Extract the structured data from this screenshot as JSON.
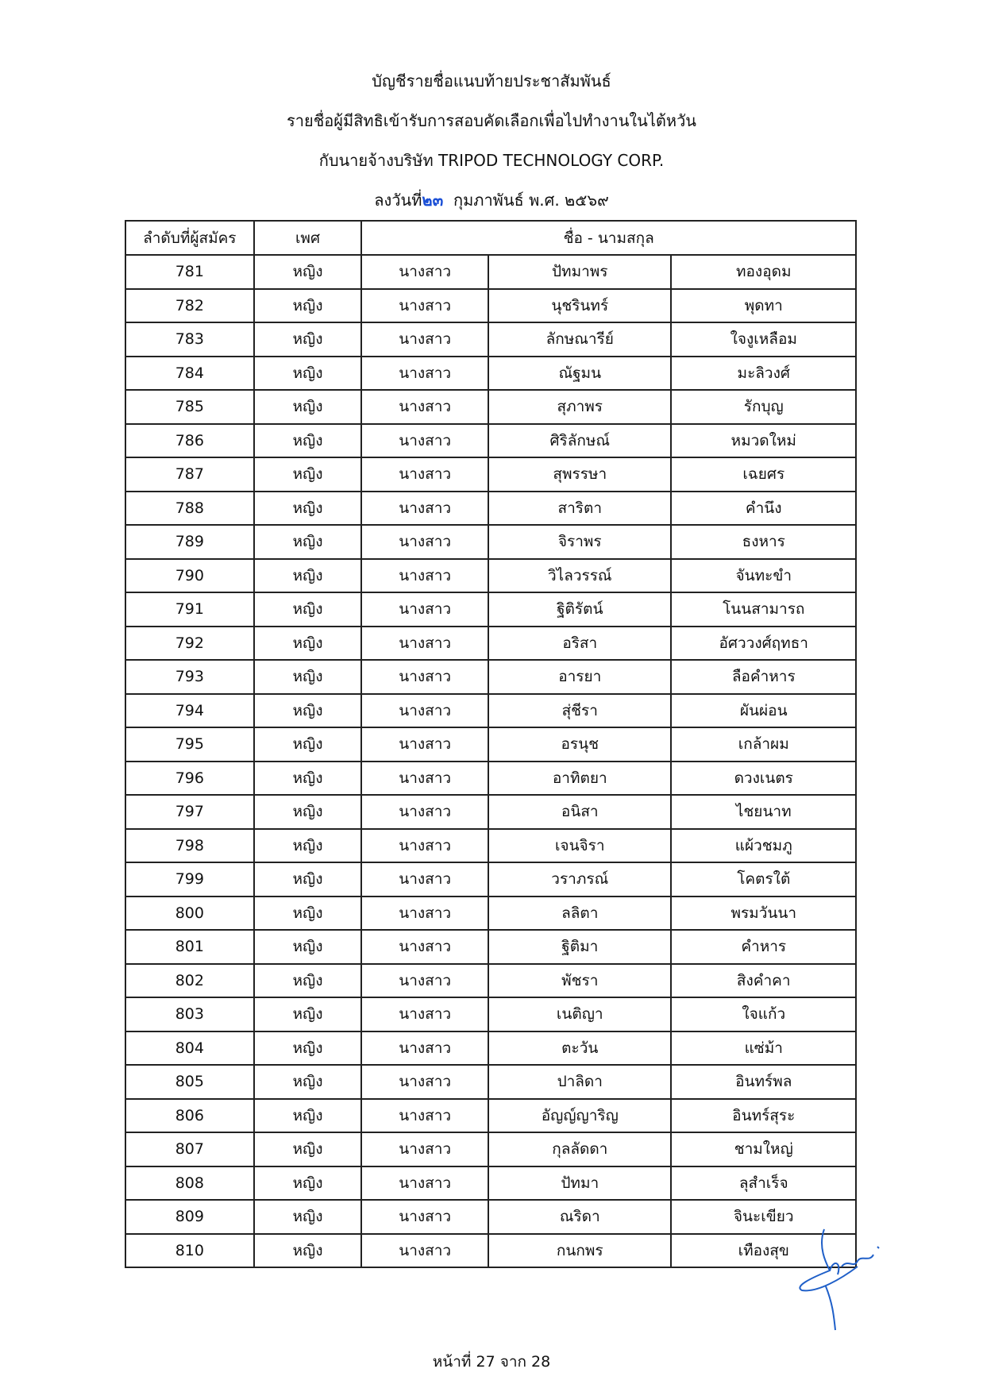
{
  "header": {
    "line1": "บัญชีรายชื่อแนบท้ายประชาสัมพันธ์",
    "line2": "รายชื่อผู้มีสิทธิเข้ารับการสอบคัดเลือกเพื่อไปทำงานในไต้หวัน",
    "line3": "กับนายจ้างบริษัท TRIPOD TECHNOLOGY CORP.",
    "date_prefix": "ลงวันที่",
    "date_day": "๒๓",
    "date_rest": "กุมภาพันธ์ พ.ศ. ๒๕๖๙"
  },
  "table": {
    "columns": [
      "ลำดับที่ผู้สมัคร",
      "เพศ",
      "ชื่อ - นามสกุล"
    ],
    "rows": [
      [
        "781",
        "หญิง",
        "นางสาว",
        "ปัทมาพร",
        "ทองอุดม"
      ],
      [
        "782",
        "หญิง",
        "นางสาว",
        "นุชรินทร์",
        "พุดทา"
      ],
      [
        "783",
        "หญิง",
        "นางสาว",
        "ลักษณารีย์",
        "ใจงูเหลือม"
      ],
      [
        "784",
        "หญิง",
        "นางสาว",
        "ณัฐมน",
        "มะลิวงศ์"
      ],
      [
        "785",
        "หญิง",
        "นางสาว",
        "สุภาพร",
        "รักบุญ"
      ],
      [
        "786",
        "หญิง",
        "นางสาว",
        "ศิริลักษณ์",
        "หมวดใหม่"
      ],
      [
        "787",
        "หญิง",
        "นางสาว",
        "สุพรรษา",
        "เฉยศร"
      ],
      [
        "788",
        "หญิง",
        "นางสาว",
        "สาริตา",
        "คำนึง"
      ],
      [
        "789",
        "หญิง",
        "นางสาว",
        "จิราพร",
        "ธงหาร"
      ],
      [
        "790",
        "หญิง",
        "นางสาว",
        "วิไลวรรณ์",
        "จันทะขำ"
      ],
      [
        "791",
        "หญิง",
        "นางสาว",
        "ฐิติรัตน์",
        "โนนสามารถ"
      ],
      [
        "792",
        "หญิง",
        "นางสาว",
        "อริสา",
        "อัศววงศ์ฤทธา"
      ],
      [
        "793",
        "หญิง",
        "นางสาว",
        "อารยา",
        "ลือคำหาร"
      ],
      [
        "794",
        "หญิง",
        "นางสาว",
        "สุ่ชีรา",
        "ผันผ่อน"
      ],
      [
        "795",
        "หญิง",
        "นางสาว",
        "อรนุช",
        "เกล้าผม"
      ],
      [
        "796",
        "หญิง",
        "นางสาว",
        "อาทิตยา",
        "ดวงเนตร"
      ],
      [
        "797",
        "หญิง",
        "นางสาว",
        "อนิสา",
        "ไชยนาท"
      ],
      [
        "798",
        "หญิง",
        "นางสาว",
        "เจนจิรา",
        "แผ้วชมภู"
      ],
      [
        "799",
        "หญิง",
        "นางสาว",
        "วราภรณ์",
        "โคตรใต้"
      ],
      [
        "800",
        "หญิง",
        "นางสาว",
        "ลลิตา",
        "พรมวันนา"
      ],
      [
        "801",
        "หญิง",
        "นางสาว",
        "ฐิติมา",
        "คำหาร"
      ],
      [
        "802",
        "หญิง",
        "นางสาว",
        "พัชรา",
        "สิงคำคา"
      ],
      [
        "803",
        "หญิง",
        "นางสาว",
        "เนติญา",
        "ใจแก้ว"
      ],
      [
        "804",
        "หญิง",
        "นางสาว",
        "ตะวัน",
        "แซ่ม้า"
      ],
      [
        "805",
        "หญิง",
        "นางสาว",
        "ปาลิดา",
        "อินทร์พล"
      ],
      [
        "806",
        "หญิง",
        "นางสาว",
        "อัญญ์ญาริญ",
        "อินทร์สุระ"
      ],
      [
        "807",
        "หญิง",
        "นางสาว",
        "กุลลัดดา",
        "ชามใหญ่"
      ],
      [
        "808",
        "หญิง",
        "นางสาว",
        "ปัทมา",
        "ลุสำเร็จ"
      ],
      [
        "809",
        "หญิง",
        "นางสาว",
        "ณริดา",
        "จินะเขียว"
      ],
      [
        "810",
        "หญิง",
        "นางสาว",
        "กนกพร",
        "เทืองสุข"
      ]
    ]
  },
  "footer": {
    "page": "หน้าที่ 27 จาก 28"
  },
  "colors": {
    "signature": "#1f5fc8",
    "date_highlight": "#1a4fd6"
  }
}
